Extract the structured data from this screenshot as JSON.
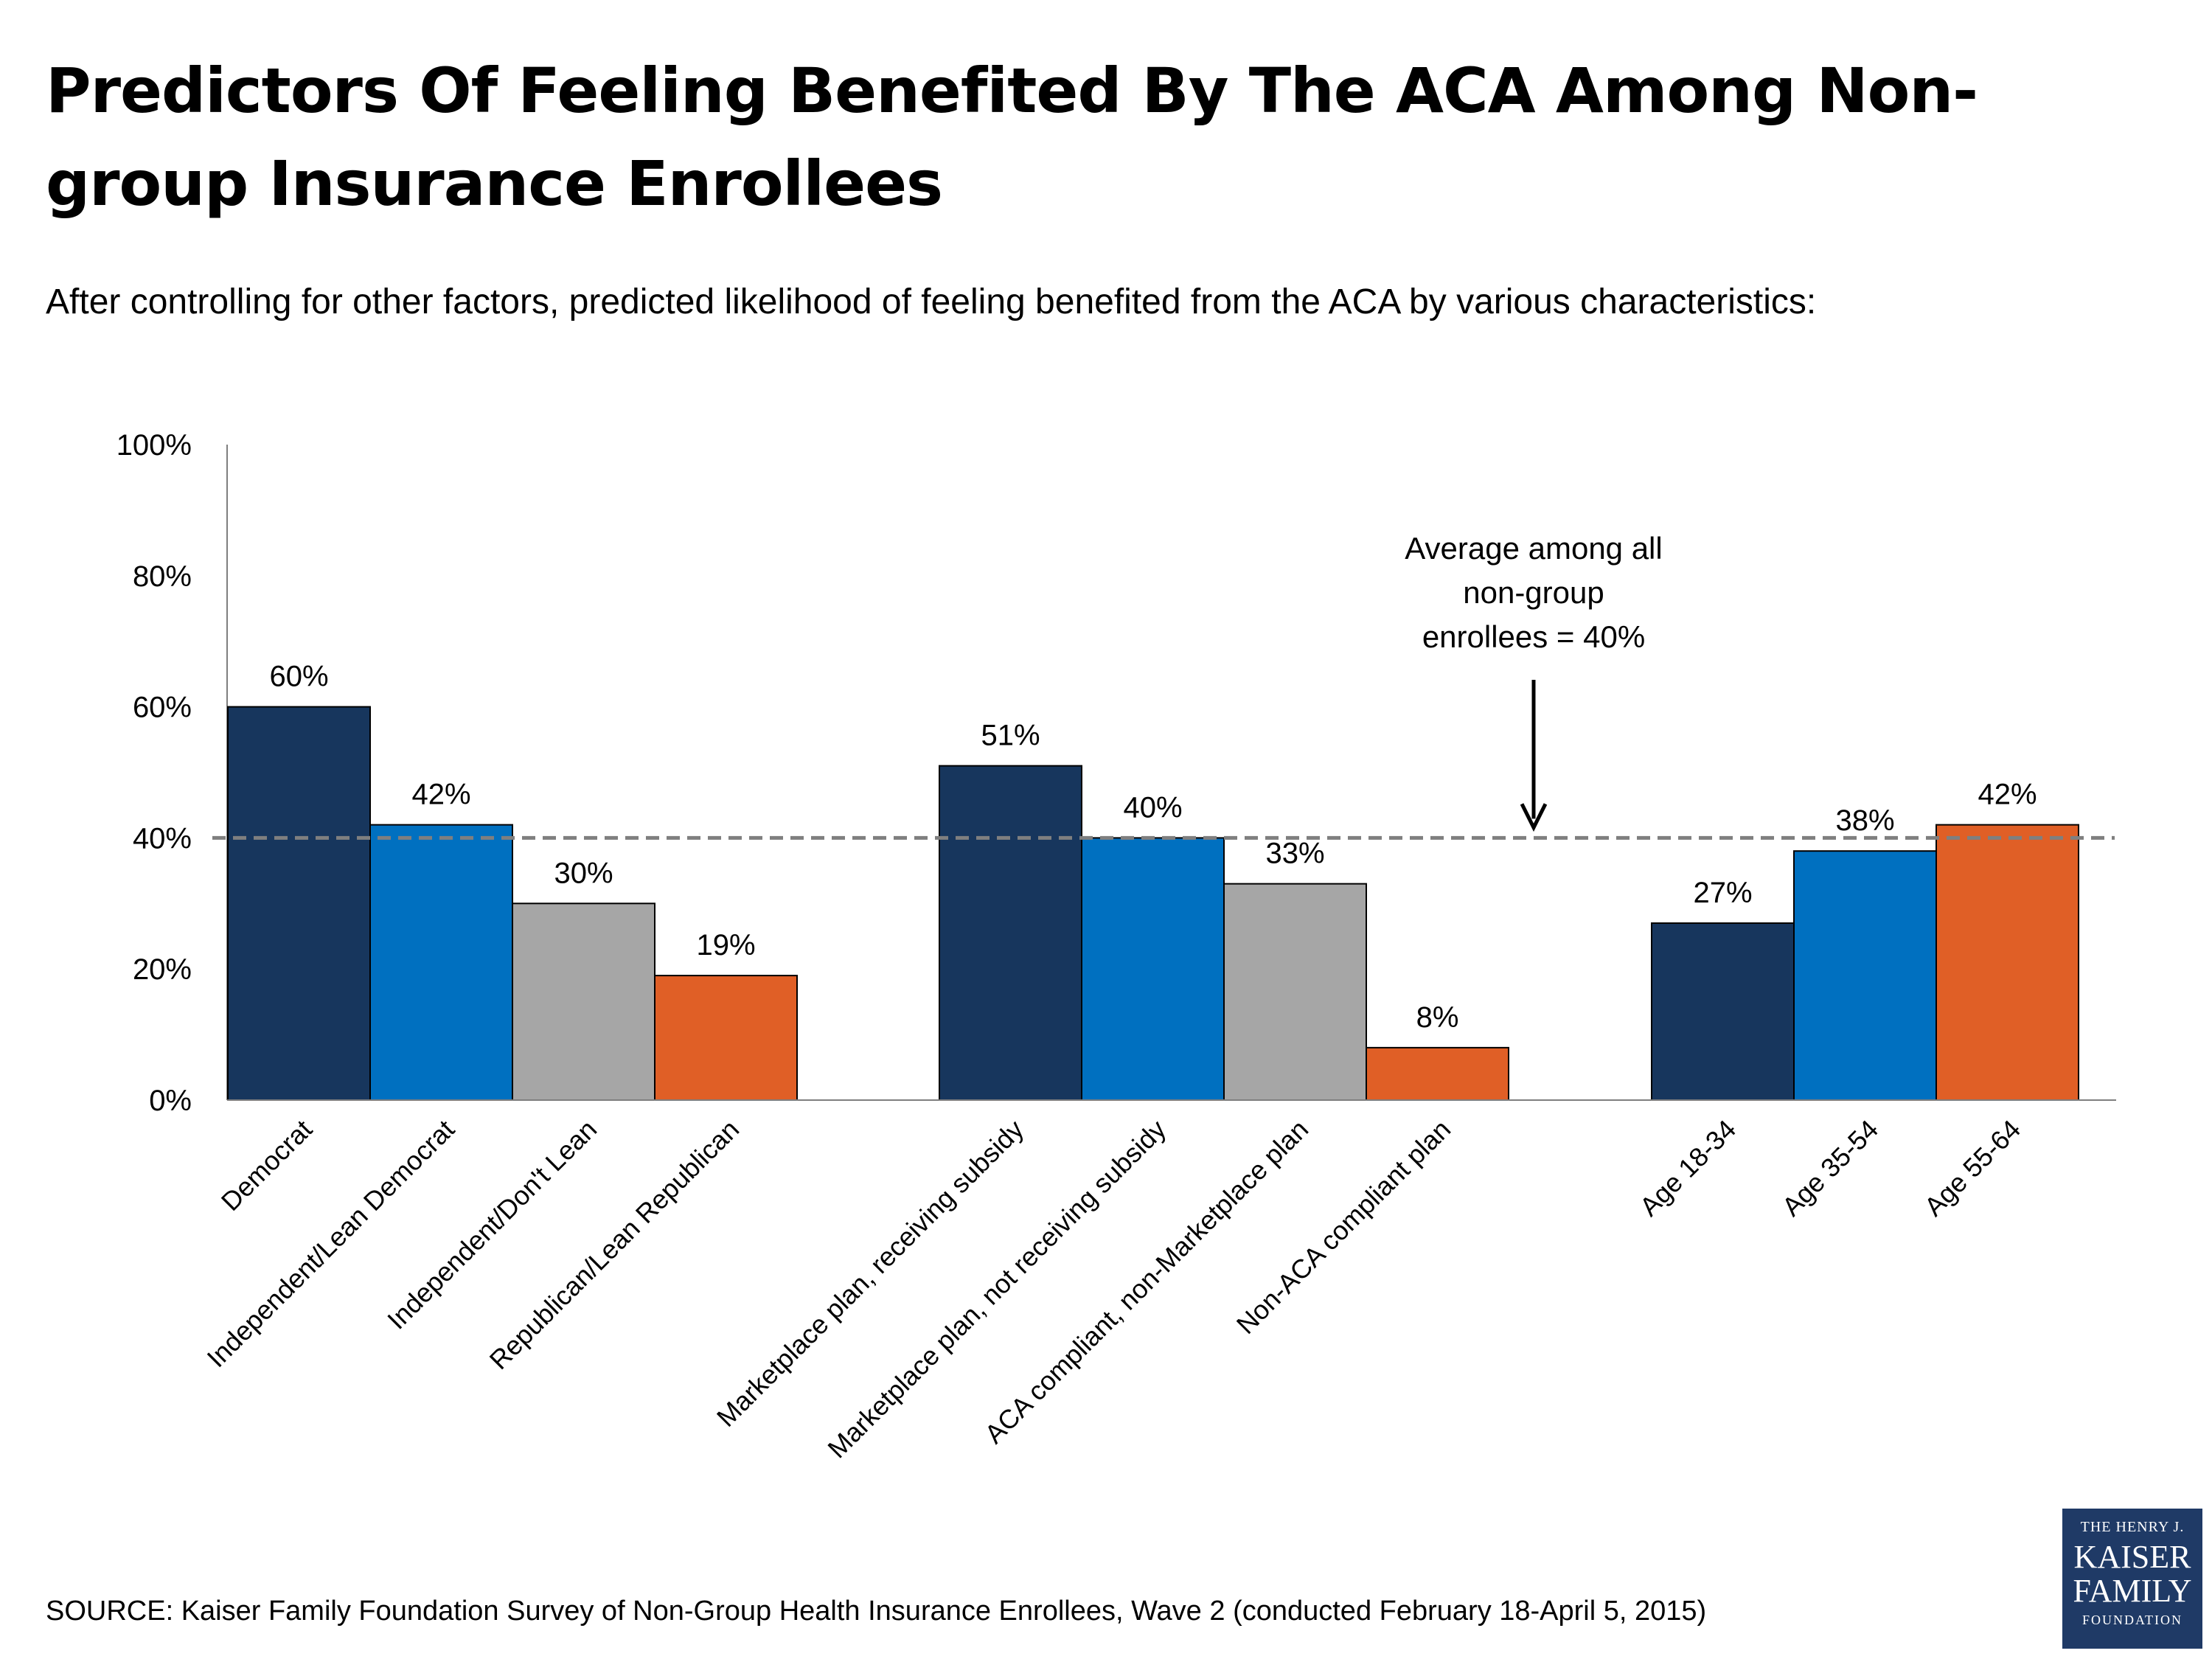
{
  "title": "Predictors Of Feeling Benefited By The ACA Among Non-group Insurance Enrollees",
  "subtitle": "After controlling for other factors, predicted likelihood of feeling benefited from the ACA by various characteristics:",
  "source": "SOURCE: Kaiser Family Foundation Survey of Non-Group Health Insurance Enrollees, Wave 2 (conducted February 18-April 5, 2015)",
  "logo": {
    "line1": "THE HENRY J.",
    "line2": "KAISER",
    "line3": "FAMILY",
    "line4": "FOUNDATION"
  },
  "colors": {
    "navy": "#17365d",
    "blue": "#0070c0",
    "gray": "#a6a6a6",
    "orange": "#e05f26",
    "reference_line": "#7f7f7f"
  },
  "chart_data": {
    "type": "bar",
    "title": "",
    "xlabel": "",
    "ylabel": "",
    "ylim": [
      0,
      100
    ],
    "y_ticks": [
      "0%",
      "20%",
      "40%",
      "60%",
      "80%",
      "100%"
    ],
    "y_tick_values": [
      0,
      20,
      40,
      60,
      80,
      100
    ],
    "grid": false,
    "legend": "none",
    "categories": [
      "Democrat",
      "Independent/Lean Democrat",
      "Independent/Don't Lean",
      "Republican/Lean Republican",
      "Marketplace plan, receiving subsidy",
      "Marketplace plan, not receiving subsidy",
      "ACA compliant, non-Marketplace plan",
      "Non-ACA compliant plan",
      "Age 18-34",
      "Age 35-54",
      "Age 55-64"
    ],
    "groups": [
      0,
      0,
      0,
      0,
      1,
      1,
      1,
      1,
      2,
      2,
      2
    ],
    "values": [
      60,
      42,
      30,
      19,
      51,
      40,
      33,
      8,
      27,
      38,
      42
    ],
    "value_labels": [
      "60%",
      "42%",
      "30%",
      "19%",
      "51%",
      "40%",
      "33%",
      "8%",
      "27%",
      "38%",
      "42%"
    ],
    "bar_colors": [
      "navy",
      "blue",
      "gray",
      "orange",
      "navy",
      "blue",
      "gray",
      "orange",
      "navy",
      "blue",
      "orange"
    ],
    "reference_line": {
      "value": 40,
      "label_lines": [
        "Average among all",
        "non-group",
        "enrollees = 40%"
      ]
    }
  }
}
